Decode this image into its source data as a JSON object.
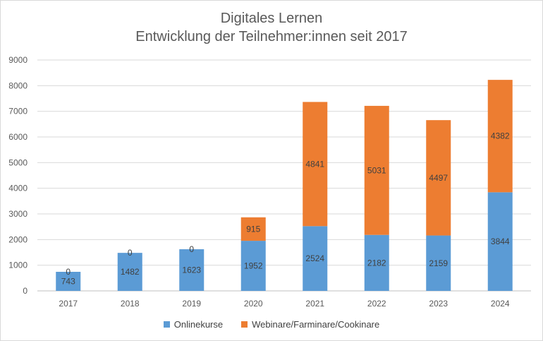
{
  "chart_data": {
    "type": "bar",
    "stacked": true,
    "title": "Digitales Lernen",
    "subtitle": "Entwicklung der Teilnehmer:innen seit 2017",
    "xlabel": "",
    "ylabel": "",
    "categories": [
      "2017",
      "2018",
      "2019",
      "2020",
      "2021",
      "2022",
      "2023",
      "2024"
    ],
    "ylim": [
      0,
      9000
    ],
    "yticks": [
      "0",
      "1000",
      "2000",
      "3000",
      "4000",
      "5000",
      "6000",
      "7000",
      "8000",
      "9000"
    ],
    "grid": true,
    "legend_position": "bottom",
    "series": [
      {
        "name": "Onlinekurse",
        "color": "#5b9bd5",
        "values": [
          743,
          1482,
          1623,
          1952,
          2524,
          2182,
          2159,
          3844
        ]
      },
      {
        "name": "Webinare/Farminare/Cookinare",
        "color": "#ed7d31",
        "values": [
          0,
          0,
          0,
          915,
          4841,
          5031,
          4497,
          4382
        ]
      }
    ]
  }
}
